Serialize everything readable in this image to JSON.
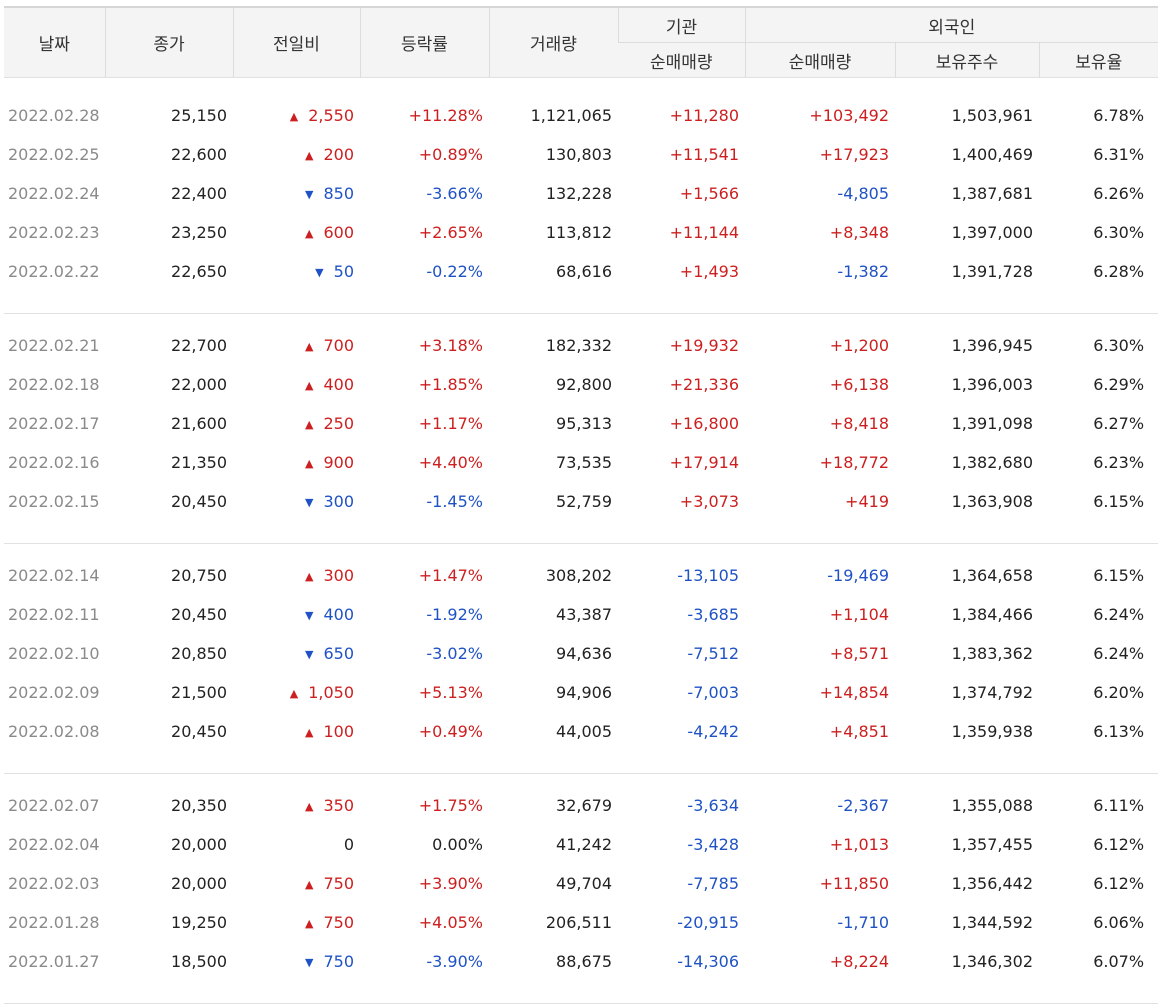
{
  "header": {
    "date": "날짜",
    "close": "종가",
    "change": "전일비",
    "rate": "등락률",
    "volume": "거래량",
    "institution": "기관",
    "inst_net": "순매매량",
    "foreign": "외국인",
    "foreign_net": "순매매량",
    "foreign_shares": "보유주수",
    "foreign_ratio": "보유율"
  },
  "colors": {
    "up": "#cd1f1f",
    "down": "#1f52c4"
  },
  "groups": [
    [
      {
        "date": "2022.02.28",
        "close": "25,150",
        "dir": "up",
        "change": "2,550",
        "rate": "+11.28%",
        "volume": "1,121,065",
        "inst": "+11,280",
        "foreign": "+103,492",
        "shares": "1,503,961",
        "ratio": "6.78%"
      },
      {
        "date": "2022.02.25",
        "close": "22,600",
        "dir": "up",
        "change": "200",
        "rate": "+0.89%",
        "volume": "130,803",
        "inst": "+11,541",
        "foreign": "+17,923",
        "shares": "1,400,469",
        "ratio": "6.31%"
      },
      {
        "date": "2022.02.24",
        "close": "22,400",
        "dir": "down",
        "change": "850",
        "rate": "-3.66%",
        "volume": "132,228",
        "inst": "+1,566",
        "foreign": "-4,805",
        "shares": "1,387,681",
        "ratio": "6.26%"
      },
      {
        "date": "2022.02.23",
        "close": "23,250",
        "dir": "up",
        "change": "600",
        "rate": "+2.65%",
        "volume": "113,812",
        "inst": "+11,144",
        "foreign": "+8,348",
        "shares": "1,397,000",
        "ratio": "6.30%"
      },
      {
        "date": "2022.02.22",
        "close": "22,650",
        "dir": "down",
        "change": "50",
        "rate": "-0.22%",
        "volume": "68,616",
        "inst": "+1,493",
        "foreign": "-1,382",
        "shares": "1,391,728",
        "ratio": "6.28%"
      }
    ],
    [
      {
        "date": "2022.02.21",
        "close": "22,700",
        "dir": "up",
        "change": "700",
        "rate": "+3.18%",
        "volume": "182,332",
        "inst": "+19,932",
        "foreign": "+1,200",
        "shares": "1,396,945",
        "ratio": "6.30%"
      },
      {
        "date": "2022.02.18",
        "close": "22,000",
        "dir": "up",
        "change": "400",
        "rate": "+1.85%",
        "volume": "92,800",
        "inst": "+21,336",
        "foreign": "+6,138",
        "shares": "1,396,003",
        "ratio": "6.29%"
      },
      {
        "date": "2022.02.17",
        "close": "21,600",
        "dir": "up",
        "change": "250",
        "rate": "+1.17%",
        "volume": "95,313",
        "inst": "+16,800",
        "foreign": "+8,418",
        "shares": "1,391,098",
        "ratio": "6.27%"
      },
      {
        "date": "2022.02.16",
        "close": "21,350",
        "dir": "up",
        "change": "900",
        "rate": "+4.40%",
        "volume": "73,535",
        "inst": "+17,914",
        "foreign": "+18,772",
        "shares": "1,382,680",
        "ratio": "6.23%"
      },
      {
        "date": "2022.02.15",
        "close": "20,450",
        "dir": "down",
        "change": "300",
        "rate": "-1.45%",
        "volume": "52,759",
        "inst": "+3,073",
        "foreign": "+419",
        "shares": "1,363,908",
        "ratio": "6.15%"
      }
    ],
    [
      {
        "date": "2022.02.14",
        "close": "20,750",
        "dir": "up",
        "change": "300",
        "rate": "+1.47%",
        "volume": "308,202",
        "inst": "-13,105",
        "foreign": "-19,469",
        "shares": "1,364,658",
        "ratio": "6.15%"
      },
      {
        "date": "2022.02.11",
        "close": "20,450",
        "dir": "down",
        "change": "400",
        "rate": "-1.92%",
        "volume": "43,387",
        "inst": "-3,685",
        "foreign": "+1,104",
        "shares": "1,384,466",
        "ratio": "6.24%"
      },
      {
        "date": "2022.02.10",
        "close": "20,850",
        "dir": "down",
        "change": "650",
        "rate": "-3.02%",
        "volume": "94,636",
        "inst": "-7,512",
        "foreign": "+8,571",
        "shares": "1,383,362",
        "ratio": "6.24%"
      },
      {
        "date": "2022.02.09",
        "close": "21,500",
        "dir": "up",
        "change": "1,050",
        "rate": "+5.13%",
        "volume": "94,906",
        "inst": "-7,003",
        "foreign": "+14,854",
        "shares": "1,374,792",
        "ratio": "6.20%"
      },
      {
        "date": "2022.02.08",
        "close": "20,450",
        "dir": "up",
        "change": "100",
        "rate": "+0.49%",
        "volume": "44,005",
        "inst": "-4,242",
        "foreign": "+4,851",
        "shares": "1,359,938",
        "ratio": "6.13%"
      }
    ],
    [
      {
        "date": "2022.02.07",
        "close": "20,350",
        "dir": "up",
        "change": "350",
        "rate": "+1.75%",
        "volume": "32,679",
        "inst": "-3,634",
        "foreign": "-2,367",
        "shares": "1,355,088",
        "ratio": "6.11%"
      },
      {
        "date": "2022.02.04",
        "close": "20,000",
        "dir": "none",
        "change": "0",
        "rate": "0.00%",
        "volume": "41,242",
        "inst": "-3,428",
        "foreign": "+1,013",
        "shares": "1,357,455",
        "ratio": "6.12%"
      },
      {
        "date": "2022.02.03",
        "close": "20,000",
        "dir": "up",
        "change": "750",
        "rate": "+3.90%",
        "volume": "49,704",
        "inst": "-7,785",
        "foreign": "+11,850",
        "shares": "1,356,442",
        "ratio": "6.12%"
      },
      {
        "date": "2022.01.28",
        "close": "19,250",
        "dir": "up",
        "change": "750",
        "rate": "+4.05%",
        "volume": "206,511",
        "inst": "-20,915",
        "foreign": "-1,710",
        "shares": "1,344,592",
        "ratio": "6.06%"
      },
      {
        "date": "2022.01.27",
        "close": "18,500",
        "dir": "down",
        "change": "750",
        "rate": "-3.90%",
        "volume": "88,675",
        "inst": "-14,306",
        "foreign": "+8,224",
        "shares": "1,346,302",
        "ratio": "6.07%"
      }
    ]
  ]
}
